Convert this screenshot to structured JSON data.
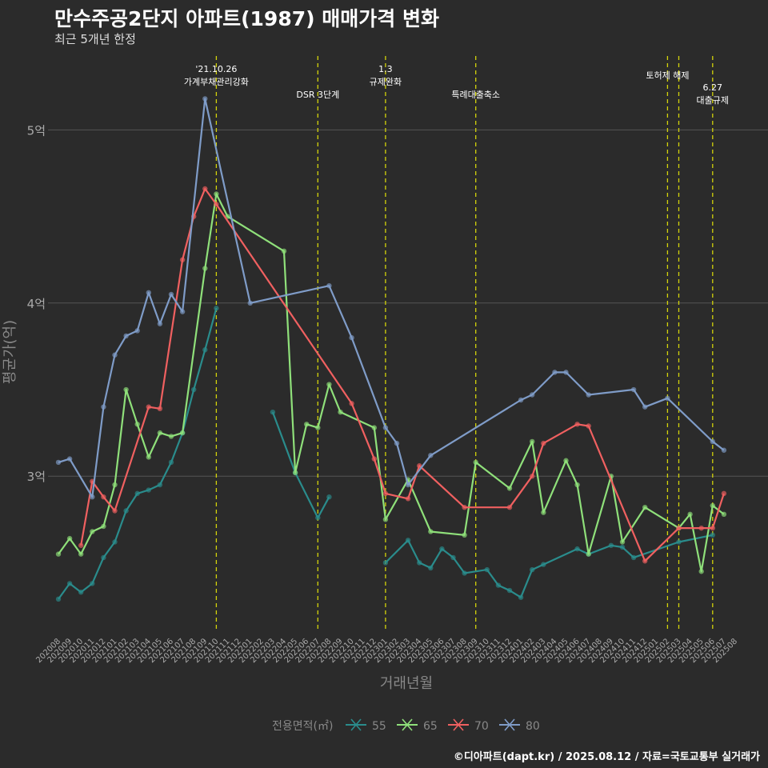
{
  "header": {
    "title": "만수주공2단지 아파트(1987) 매매가격 변화",
    "subtitle": "최근 5개년 한정",
    "caption": "©디아파트(dapt.kr) / 2025.08.12 / 자료=국토교통부 실거래가"
  },
  "chart_data": {
    "type": "line",
    "xlabel": "거래년월",
    "ylabel": "평균가(억)",
    "ylim": [
      2.1,
      5.45
    ],
    "yticks": [
      {
        "v": 3,
        "label": "3억"
      },
      {
        "v": 4,
        "label": "4억"
      },
      {
        "v": 5,
        "label": "5억"
      }
    ],
    "x_categories": [
      "202008",
      "202009",
      "202010",
      "202011",
      "202012",
      "202101",
      "202102",
      "202103",
      "202104",
      "202105",
      "202106",
      "202107",
      "202108",
      "202109",
      "202110",
      "202111",
      "202112",
      "202201",
      "202202",
      "202203",
      "202204",
      "202205",
      "202206",
      "202207",
      "202208",
      "202209",
      "202210",
      "202211",
      "202212",
      "202301",
      "202302",
      "202303",
      "202304",
      "202305",
      "202306",
      "202307",
      "202308",
      "202309",
      "202310",
      "202311",
      "202312",
      "202401",
      "202402",
      "202403",
      "202404",
      "202405",
      "202406",
      "202407",
      "202408",
      "202409",
      "202410",
      "202411",
      "202412",
      "202501",
      "202502",
      "202503",
      "202504",
      "202505",
      "202506",
      "202507",
      "202508"
    ],
    "legend": {
      "title": "전용면적(㎡)",
      "position": "bottom"
    },
    "series": [
      {
        "name": "55",
        "color": "#2a8c8c",
        "points": [
          [
            "202008",
            2.29
          ],
          [
            "202009",
            2.38
          ],
          [
            "202010",
            2.33
          ],
          [
            "202011",
            2.38
          ],
          [
            "202012",
            2.53
          ],
          [
            "202101",
            2.62
          ],
          [
            "202102",
            2.8
          ],
          [
            "202103",
            2.9
          ],
          [
            "202104",
            2.92
          ],
          [
            "202105",
            2.95
          ],
          [
            "202106",
            3.08
          ],
          [
            "202107",
            3.25
          ],
          [
            "202108",
            3.5
          ],
          [
            "202109",
            3.73
          ],
          [
            "202110",
            3.97
          ]
        ],
        "points2": [
          [
            "202203",
            3.37
          ],
          [
            "202205",
            3.02
          ],
          [
            "202207",
            2.76
          ],
          [
            "202208",
            2.88
          ]
        ],
        "points3": [
          [
            "202301",
            2.5
          ],
          [
            "202303",
            2.63
          ],
          [
            "202304",
            2.5
          ],
          [
            "202305",
            2.47
          ],
          [
            "202306",
            2.58
          ],
          [
            "202307",
            2.53
          ],
          [
            "202308",
            2.44
          ],
          [
            "202310",
            2.46
          ],
          [
            "202311",
            2.37
          ],
          [
            "202312",
            2.34
          ],
          [
            "202401",
            2.3
          ],
          [
            "202402",
            2.46
          ],
          [
            "202403",
            2.49
          ],
          [
            "202406",
            2.58
          ],
          [
            "202407",
            2.55
          ],
          [
            "202409",
            2.6
          ],
          [
            "202410",
            2.59
          ],
          [
            "202411",
            2.53
          ],
          [
            "202503",
            2.62
          ],
          [
            "202506",
            2.66
          ]
        ]
      },
      {
        "name": "65",
        "color": "#8fe07a",
        "points": [
          [
            "202008",
            2.55
          ],
          [
            "202009",
            2.64
          ],
          [
            "202010",
            2.55
          ],
          [
            "202011",
            2.68
          ],
          [
            "202012",
            2.71
          ],
          [
            "202101",
            2.95
          ],
          [
            "202102",
            3.5
          ],
          [
            "202103",
            3.3
          ],
          [
            "202104",
            3.11
          ],
          [
            "202105",
            3.25
          ],
          [
            "202106",
            3.23
          ],
          [
            "202107",
            3.25
          ],
          [
            "202109",
            4.2
          ],
          [
            "202110",
            4.63
          ],
          [
            "202111",
            4.5
          ],
          [
            "202204",
            4.3
          ],
          [
            "202205",
            3.02
          ],
          [
            "202206",
            3.3
          ],
          [
            "202207",
            3.28
          ],
          [
            "202208",
            3.53
          ],
          [
            "202209",
            3.37
          ],
          [
            "202212",
            3.28
          ],
          [
            "202301",
            2.75
          ],
          [
            "202303",
            2.98
          ],
          [
            "202305",
            2.68
          ],
          [
            "202308",
            2.66
          ],
          [
            "202309",
            3.08
          ],
          [
            "202312",
            2.93
          ],
          [
            "202402",
            3.2
          ],
          [
            "202403",
            2.79
          ],
          [
            "202405",
            3.09
          ],
          [
            "202406",
            2.95
          ],
          [
            "202407",
            2.55
          ],
          [
            "202409",
            3.0
          ],
          [
            "202410",
            2.62
          ],
          [
            "202412",
            2.82
          ],
          [
            "202503",
            2.7
          ],
          [
            "202504",
            2.78
          ],
          [
            "202505",
            2.45
          ],
          [
            "202506",
            2.83
          ],
          [
            "202507",
            2.78
          ]
        ]
      },
      {
        "name": "70",
        "color": "#f06060",
        "points": [
          [
            "202010",
            2.6
          ],
          [
            "202011",
            2.97
          ],
          [
            "202012",
            2.88
          ],
          [
            "202101",
            2.8
          ],
          [
            "202104",
            3.4
          ],
          [
            "202105",
            3.39
          ],
          [
            "202107",
            4.25
          ],
          [
            "202108",
            4.5
          ],
          [
            "202109",
            4.66
          ],
          [
            "202110",
            4.57
          ],
          [
            "202210",
            3.42
          ],
          [
            "202212",
            3.1
          ],
          [
            "202301",
            2.9
          ],
          [
            "202303",
            2.87
          ],
          [
            "202304",
            3.06
          ],
          [
            "202308",
            2.82
          ],
          [
            "202312",
            2.82
          ],
          [
            "202402",
            3.0
          ],
          [
            "202403",
            3.19
          ],
          [
            "202406",
            3.3
          ],
          [
            "202407",
            3.29
          ],
          [
            "202412",
            2.51
          ],
          [
            "202503",
            2.7
          ],
          [
            "202505",
            2.7
          ],
          [
            "202506",
            2.7
          ],
          [
            "202507",
            2.9
          ]
        ]
      },
      {
        "name": "80",
        "color": "#7f9cc8",
        "points": [
          [
            "202008",
            3.08
          ],
          [
            "202009",
            3.1
          ],
          [
            "202011",
            2.88
          ],
          [
            "202012",
            3.4
          ],
          [
            "202101",
            3.7
          ],
          [
            "202102",
            3.81
          ],
          [
            "202103",
            3.84
          ],
          [
            "202104",
            4.06
          ],
          [
            "202105",
            3.88
          ],
          [
            "202106",
            4.05
          ],
          [
            "202107",
            3.95
          ],
          [
            "202109",
            5.18
          ],
          [
            "202201",
            4.0
          ],
          [
            "202208",
            4.1
          ],
          [
            "202210",
            3.8
          ],
          [
            "202301",
            3.28
          ],
          [
            "202302",
            3.19
          ],
          [
            "202303",
            2.95
          ],
          [
            "202305",
            3.12
          ],
          [
            "202401",
            3.44
          ],
          [
            "202402",
            3.47
          ],
          [
            "202404",
            3.6
          ],
          [
            "202405",
            3.6
          ],
          [
            "202407",
            3.47
          ],
          [
            "202411",
            3.5
          ],
          [
            "202412",
            3.4
          ],
          [
            "202502",
            3.45
          ],
          [
            "202506",
            3.2
          ],
          [
            "202507",
            3.15
          ]
        ]
      }
    ],
    "annotations": [
      {
        "x": "202110",
        "text": [
          "'21.10.26",
          "가계부채관리강화"
        ]
      },
      {
        "x": "202207",
        "text": [
          "DSR 3단계"
        ]
      },
      {
        "x": "202301",
        "text": [
          "1.3",
          "규제완화"
        ]
      },
      {
        "x": "202309",
        "text": [
          "특례대출축소"
        ]
      },
      {
        "x": "202502",
        "text": [
          "토허제 해제"
        ]
      },
      {
        "x": "202503",
        "text": []
      },
      {
        "x": "202506",
        "text": [
          "6.27",
          "대출규제"
        ]
      }
    ]
  }
}
